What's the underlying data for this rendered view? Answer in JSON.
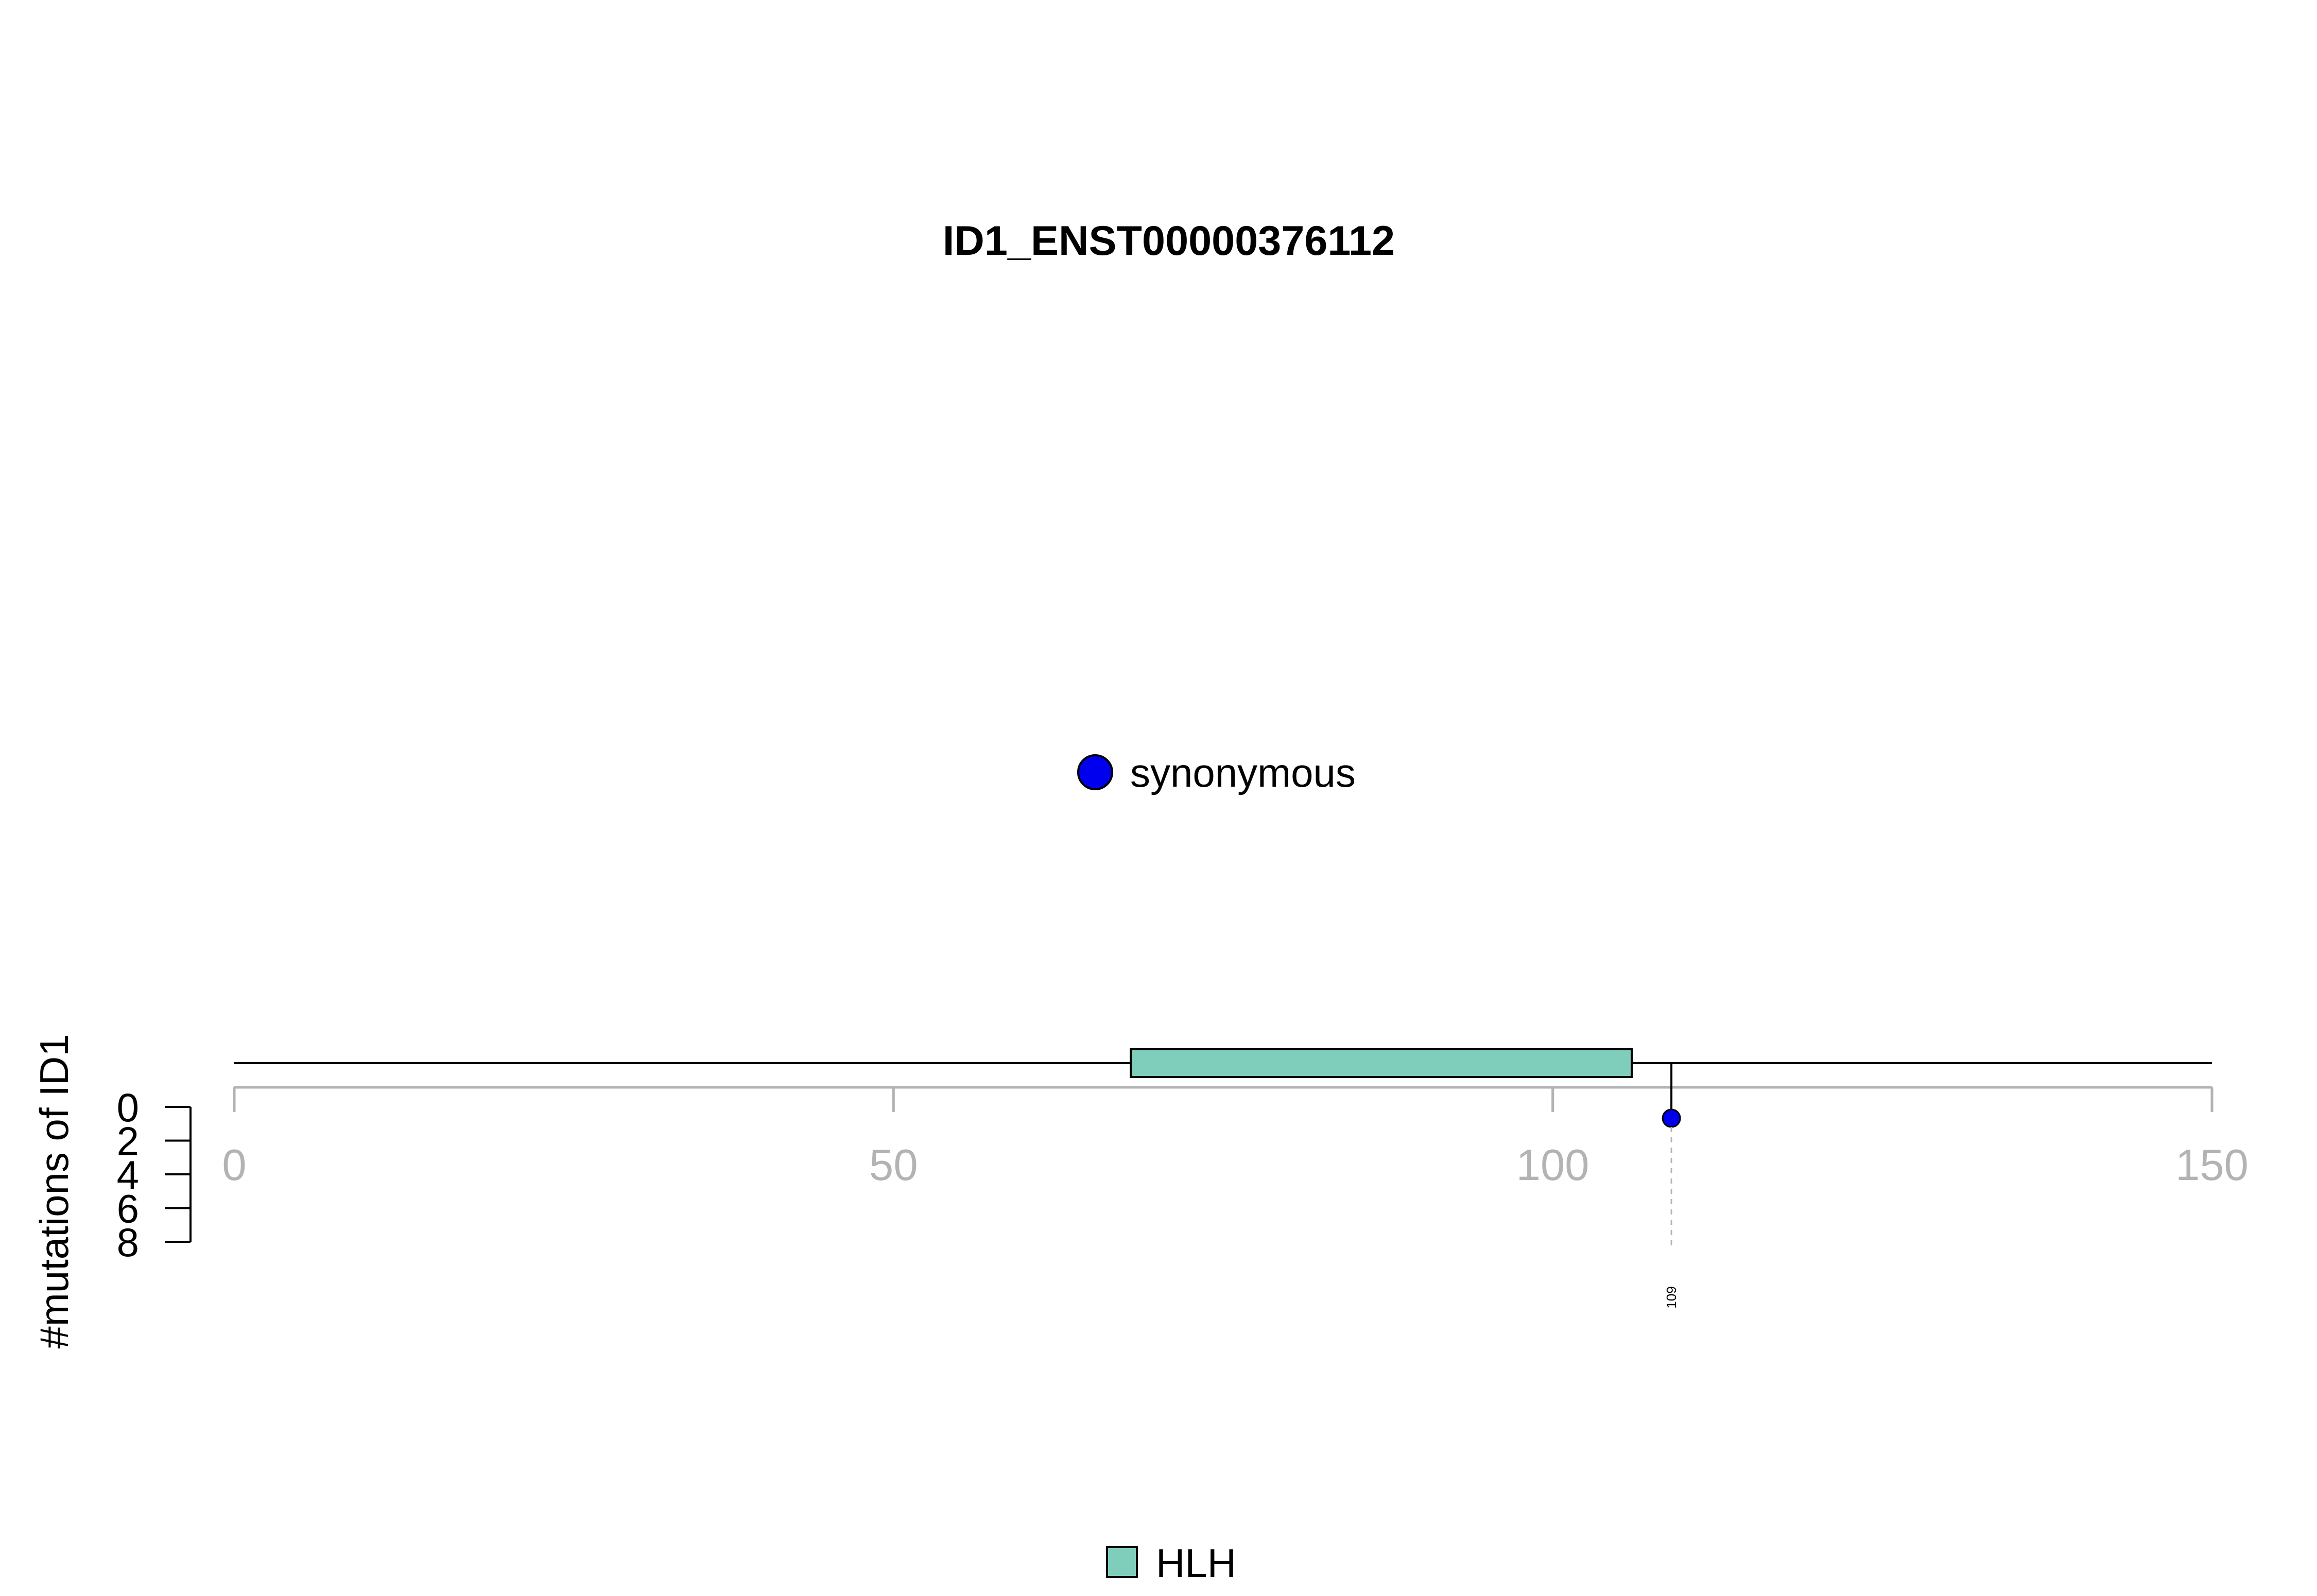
{
  "chart_data": {
    "type": "lollipop",
    "title": "ID1_ENST00000376112",
    "ylabel": "#mutations of ID1",
    "xlim": [
      0,
      150
    ],
    "x_ticks": [
      0,
      50,
      100,
      150
    ],
    "y_ticks": [
      0,
      2,
      4,
      6,
      8
    ],
    "protein_length": 150,
    "domains": [
      {
        "name": "HLH",
        "start": 68,
        "end": 106,
        "color": "#7fcdbb"
      }
    ],
    "mutations": [
      {
        "position": 109,
        "count": 1,
        "type": "synonymous",
        "label": "109"
      }
    ],
    "mutation_legend": [
      {
        "type": "synonymous",
        "color": "#0000ee"
      }
    ],
    "domain_legend": [
      {
        "name": "HLH",
        "color": "#7fcdbb"
      }
    ]
  }
}
